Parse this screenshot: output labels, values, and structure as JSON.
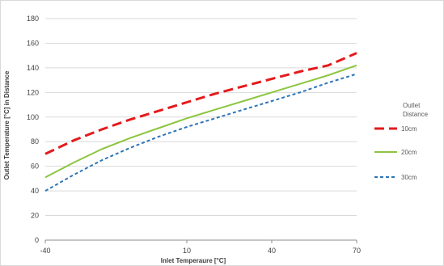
{
  "chart_data": {
    "type": "line",
    "xlabel": "Inlet Temperaure [°C]",
    "ylabel": "Outlet Temperature [°C] in Distance",
    "xlim": [
      -40,
      70
    ],
    "ylim": [
      0,
      180
    ],
    "x_ticks": [
      "-40",
      "10",
      "40",
      "70"
    ],
    "y_ticks": [
      "0",
      "20",
      "40",
      "60",
      "80",
      "100",
      "120",
      "140",
      "160",
      "180"
    ],
    "grid": "horizontal",
    "legend": {
      "title": "Outlet Distance",
      "position": "right"
    },
    "x": [
      -40,
      -30,
      -20,
      -10,
      0,
      10,
      20,
      30,
      40,
      50,
      60,
      70
    ],
    "series": [
      {
        "name": "10cm",
        "color": "#e31a1c",
        "dash": "long-dash",
        "values": [
          70,
          81,
          90,
          98,
          105,
          112,
          119,
          125,
          131,
          137,
          142,
          152
        ]
      },
      {
        "name": "20cm",
        "color": "#8cc63f",
        "dash": "solid",
        "values": [
          51,
          63,
          74,
          83,
          91,
          99,
          106,
          113,
          120,
          127,
          134,
          142
        ]
      },
      {
        "name": "30cm",
        "color": "#2e75b6",
        "dash": "short-dash",
        "values": [
          40,
          53,
          65,
          75,
          84,
          92,
          99,
          106,
          113,
          120,
          128,
          135
        ]
      }
    ]
  }
}
